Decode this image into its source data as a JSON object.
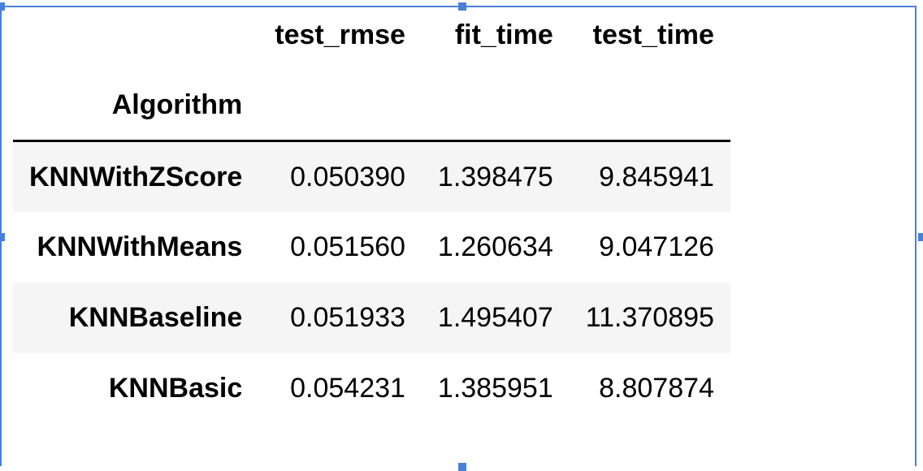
{
  "table": {
    "columns": [
      "test_rmse",
      "fit_time",
      "test_time"
    ],
    "index_name": "Algorithm",
    "rows": [
      {
        "algorithm": "KNNWithZScore",
        "values": [
          "0.050390",
          "1.398475",
          "9.845941"
        ]
      },
      {
        "algorithm": "KNNWithMeans",
        "values": [
          "0.051560",
          "1.260634",
          "9.047126"
        ]
      },
      {
        "algorithm": "KNNBaseline",
        "values": [
          "0.051933",
          "1.495407",
          "11.370895"
        ]
      },
      {
        "algorithm": "KNNBasic",
        "values": [
          "0.054231",
          "1.385951",
          "8.807874"
        ]
      }
    ]
  },
  "colors": {
    "selection": "#4a7fd8",
    "stripe": "#f5f5f5",
    "rule": "#000000"
  }
}
